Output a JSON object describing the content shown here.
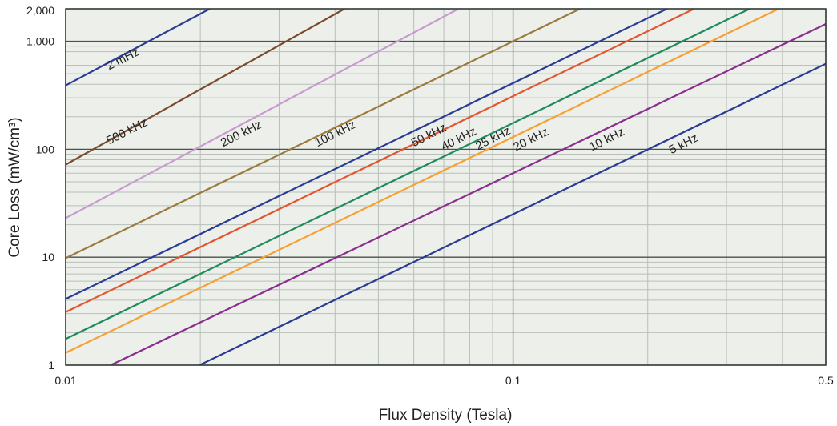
{
  "chart_data": {
    "type": "line",
    "title": "",
    "xlabel": "Flux Density (Tesla)",
    "ylabel": "Core Loss (mW/cm³)",
    "x_scale": "log",
    "y_scale": "log",
    "xlim": [
      0.01,
      0.5
    ],
    "ylim": [
      1,
      2000
    ],
    "grid": true,
    "legend": "none",
    "plot_background": "#ecefea",
    "x_ticks": [
      0.01,
      0.1,
      0.5
    ],
    "x_tick_labels": [
      "0.01",
      "0.1",
      "0.5"
    ],
    "y_ticks": [
      1,
      10,
      100,
      1000,
      2000
    ],
    "y_tick_labels": [
      "1",
      "10",
      "100",
      "1,000",
      "2,000"
    ],
    "series": [
      {
        "name": "2 mHz",
        "color": "#2b3b93",
        "points": [
          [
            0.01,
            390
          ],
          [
            0.021,
            2000
          ]
        ]
      },
      {
        "name": "500 kHz",
        "color": "#7b4a2c",
        "points": [
          [
            0.01,
            72
          ],
          [
            0.042,
            2000
          ]
        ]
      },
      {
        "name": "200 kHz",
        "color": "#c99ad0",
        "points": [
          [
            0.01,
            23
          ],
          [
            0.0755,
            2000
          ]
        ]
      },
      {
        "name": "100 kHz",
        "color": "#9b7a3e",
        "points": [
          [
            0.01,
            9.8
          ],
          [
            0.1,
            1000
          ]
        ]
      },
      {
        "name": "50 kHz",
        "color": "#2b3b93",
        "points": [
          [
            0.01,
            4.1
          ],
          [
            0.1,
            410
          ]
        ]
      },
      {
        "name": "40 kHz",
        "color": "#e2552f",
        "points": [
          [
            0.01,
            3.1
          ],
          [
            0.1,
            310
          ]
        ]
      },
      {
        "name": "25 kHz",
        "color": "#1f8a5b",
        "points": [
          [
            0.01,
            1.75
          ],
          [
            0.1,
            175
          ]
        ]
      },
      {
        "name": "20 kHz",
        "color": "#f7a032",
        "points": [
          [
            0.01,
            1.3
          ],
          [
            0.1,
            130
          ]
        ]
      },
      {
        "name": "10 kHz",
        "color": "#8a2d8f",
        "points": [
          [
            0.0126,
            1
          ],
          [
            0.1,
            60
          ]
        ]
      },
      {
        "name": "5 kHz",
        "color": "#2b3b93",
        "points": [
          [
            0.0199,
            1
          ],
          [
            0.1,
            25
          ]
        ]
      }
    ],
    "annotations": [
      {
        "text": "2 mHz",
        "x": 0.0125,
        "y": 540,
        "rotation": -27
      },
      {
        "text": "500 kHz",
        "x": 0.0125,
        "y": 110,
        "rotation": -27
      },
      {
        "text": "200 kHz",
        "x": 0.0225,
        "y": 105,
        "rotation": -27
      },
      {
        "text": "100 kHz",
        "x": 0.0365,
        "y": 105,
        "rotation": -27
      },
      {
        "text": "50 kHz",
        "x": 0.06,
        "y": 105,
        "rotation": -27
      },
      {
        "text": "40 kHz",
        "x": 0.07,
        "y": 97,
        "rotation": -27
      },
      {
        "text": "25 kHz",
        "x": 0.0835,
        "y": 98,
        "rotation": -27
      },
      {
        "text": "20 kHz",
        "x": 0.1015,
        "y": 96,
        "rotation": -27
      },
      {
        "text": "10 kHz",
        "x": 0.15,
        "y": 96,
        "rotation": -27
      },
      {
        "text": "5 kHz",
        "x": 0.226,
        "y": 90,
        "rotation": -27
      }
    ]
  }
}
